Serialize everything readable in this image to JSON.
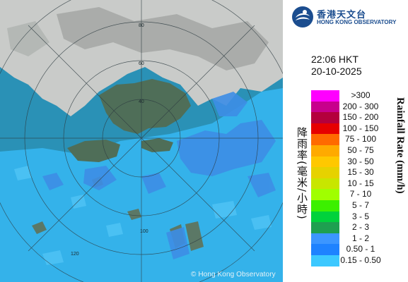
{
  "map": {
    "copyright": "© Hong Kong Observatory",
    "colors": {
      "sea": "#2a91b6",
      "land_light": "#c9cbc9",
      "land_dark": "#4f6e58",
      "rain_light": "#35b6ef",
      "rain_medium": "#3d8ee6"
    },
    "range_ring_labels": [
      "40",
      "60",
      "80",
      "100",
      "120"
    ]
  },
  "logo": {
    "name_zh": "香港天文台",
    "name_en": "HONG KONG OBSERVATORY"
  },
  "timestamp": {
    "time": "22:06 HKT",
    "date": "20-10-2025"
  },
  "legend": {
    "title_zh": "降雨率(毫米/小時)",
    "title_en": "Rainfall Rate (mm/h)",
    "items": [
      {
        "label": ">300",
        "color": "#ff00ff"
      },
      {
        "label": "200 - 300",
        "color": "#c8008c"
      },
      {
        "label": "150 - 200",
        "color": "#b4003c"
      },
      {
        "label": "100 - 150",
        "color": "#e60000"
      },
      {
        "label": "75 - 100",
        "color": "#ff6a00"
      },
      {
        "label": "50 - 75",
        "color": "#ffaa00"
      },
      {
        "label": "30 - 50",
        "color": "#ffc800"
      },
      {
        "label": "15 - 30",
        "color": "#e6d200"
      },
      {
        "label": "10 - 15",
        "color": "#c8e600"
      },
      {
        "label": "7 - 10",
        "color": "#a0ff00"
      },
      {
        "label": "5 - 7",
        "color": "#3cf000"
      },
      {
        "label": "3 - 5",
        "color": "#00d23c"
      },
      {
        "label": "2 - 3",
        "color": "#1ea050"
      },
      {
        "label": "1 - 2",
        "color": "#3c96ff"
      },
      {
        "label": "0.50 - 1",
        "color": "#1e82ff"
      },
      {
        "label": "0.15 - 0.50",
        "color": "#3cc8ff"
      }
    ]
  }
}
